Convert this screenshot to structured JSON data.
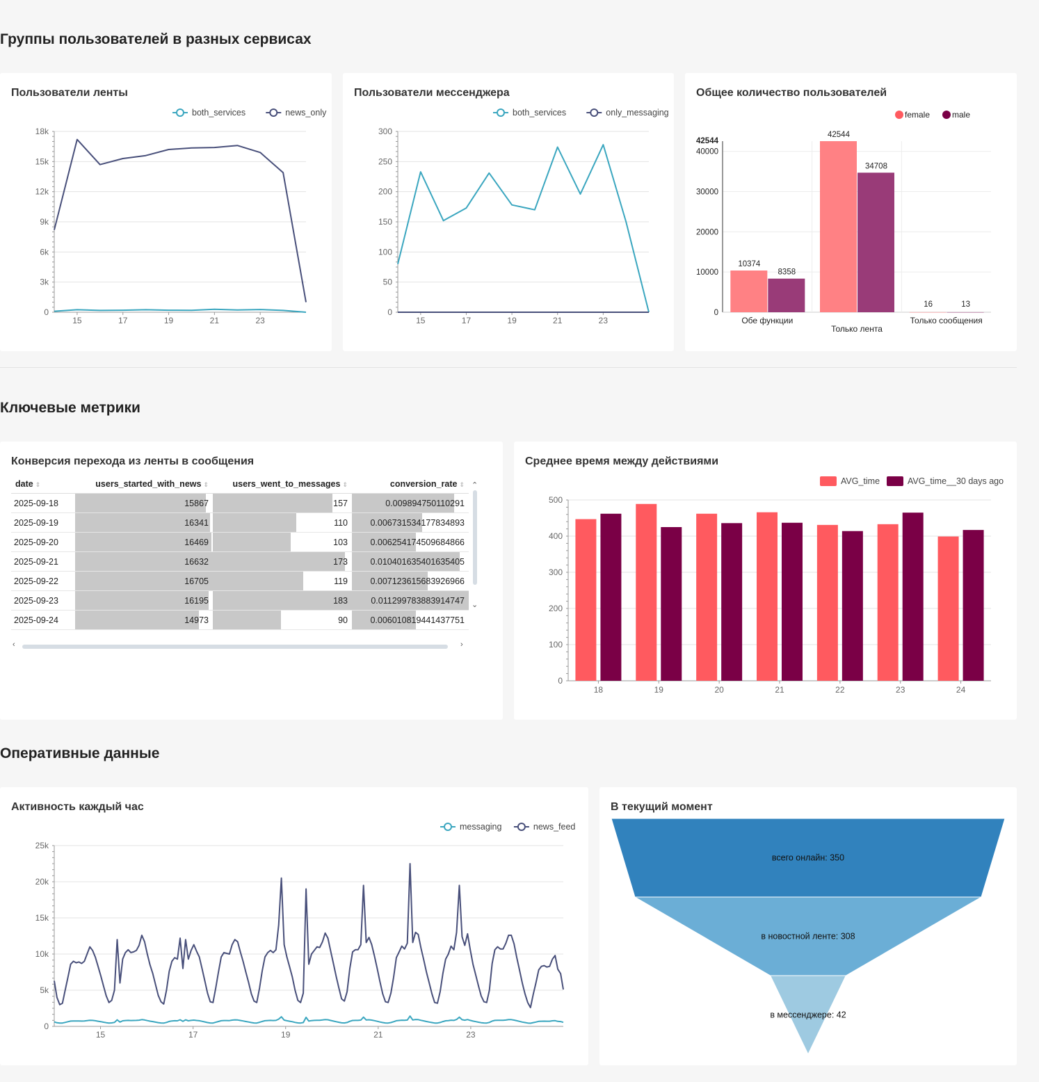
{
  "sections": {
    "groups": "Группы пользователей в разных сервисах",
    "metrics": "Ключевые метрики",
    "operational": "Оперативные данные"
  },
  "cards": {
    "feed_users": "Пользователи ленты",
    "messenger_users": "Пользователи мессенджера",
    "total_users": "Общее количество пользователей",
    "conversion": "Конверсия перехода из ленты в сообщения",
    "avg_time": "Среднее время между действиями",
    "hourly": "Активность каждый час",
    "current": "В текущий момент"
  },
  "colors": {
    "teal": "#3aa6bf",
    "navy": "#484f7a",
    "salmon": "#ff5a5f",
    "salmon_light": "#ff8184",
    "plum": "#7a0046",
    "plum_light": "#993b78",
    "funnel_1": "#3182bd",
    "funnel_2": "#6baed6",
    "funnel_3": "#9ecae1"
  },
  "table": {
    "columns": [
      "date",
      "users_started_with_news",
      "users_went_to_messages",
      "conversion_rate"
    ],
    "rows": [
      [
        "2025-09-18",
        "15867",
        "157",
        "0.009894750110291"
      ],
      [
        "2025-09-19",
        "16341",
        "110",
        "0.006731534177834893"
      ],
      [
        "2025-09-20",
        "16469",
        "103",
        "0.006254174509684866"
      ],
      [
        "2025-09-21",
        "16632",
        "173",
        "0.010401635401635405"
      ],
      [
        "2025-09-22",
        "16705",
        "119",
        "0.007123615683926966"
      ],
      [
        "2025-09-23",
        "16195",
        "183",
        "0.011299783883914747"
      ],
      [
        "2025-09-24",
        "14973",
        "90",
        "0.006010819441437751"
      ]
    ],
    "bars": [
      [
        0.95,
        0.86,
        0.35
      ],
      [
        0.98,
        0.6,
        0.24
      ],
      [
        0.99,
        0.56,
        0.22
      ],
      [
        1.0,
        0.95,
        0.37
      ],
      [
        1.0,
        0.65,
        0.26
      ],
      [
        0.97,
        1.0,
        0.4
      ],
      [
        0.9,
        0.49,
        0.22
      ]
    ]
  },
  "chart_data": [
    {
      "type": "line",
      "title": "Пользователи ленты",
      "x": [
        14,
        15,
        16,
        17,
        18,
        19,
        20,
        21,
        22,
        23,
        24,
        25
      ],
      "x_ticks": [
        "15",
        "17",
        "19",
        "21",
        "23"
      ],
      "y_ticks": [
        "0",
        "3k",
        "6k",
        "9k",
        "12k",
        "15k",
        "18k"
      ],
      "ylim": [
        0,
        18000
      ],
      "series": [
        {
          "name": "both_services",
          "color": "#3aa6bf",
          "values": [
            100,
            250,
            180,
            200,
            250,
            200,
            190,
            300,
            230,
            270,
            180,
            0
          ]
        },
        {
          "name": "news_only",
          "color": "#484f7a",
          "values": [
            8200,
            17200,
            14700,
            15300,
            15600,
            16200,
            16350,
            16400,
            16600,
            15900,
            13900,
            1000
          ]
        }
      ]
    },
    {
      "type": "line",
      "title": "Пользователи мессенджера",
      "x": [
        14,
        15,
        16,
        17,
        18,
        19,
        20,
        21,
        22,
        23,
        24,
        25
      ],
      "x_ticks": [
        "15",
        "17",
        "19",
        "21",
        "23"
      ],
      "y_ticks": [
        "0",
        "50",
        "100",
        "150",
        "200",
        "250",
        "300"
      ],
      "ylim": [
        0,
        300
      ],
      "series": [
        {
          "name": "both_services",
          "color": "#3aa6bf",
          "values": [
            80,
            233,
            152,
            173,
            231,
            178,
            170,
            274,
            196,
            278,
            150,
            0
          ]
        },
        {
          "name": "only_messaging",
          "color": "#484f7a",
          "values": [
            0,
            0,
            0,
            0,
            0,
            0,
            0,
            0,
            0,
            0,
            0,
            0
          ]
        }
      ]
    },
    {
      "type": "bar",
      "title": "Общее количество пользователей",
      "categories": [
        "Обе функции",
        "Только лента",
        "Только сообщения"
      ],
      "y_ticks": [
        "0",
        "10000",
        "20000",
        "30000",
        "40000"
      ],
      "ylim": [
        0,
        42544
      ],
      "y_max_label": "42544",
      "series": [
        {
          "name": "female",
          "color": "#ff8184",
          "legend_color": "#ff5a5f",
          "values": [
            10374,
            42544,
            16
          ]
        },
        {
          "name": "male",
          "color": "#993b78",
          "legend_color": "#7a0046",
          "values": [
            8358,
            34708,
            13
          ]
        }
      ]
    },
    {
      "type": "bar",
      "title": "Среднее время между действиями",
      "categories": [
        "18",
        "19",
        "20",
        "21",
        "22",
        "23",
        "24"
      ],
      "y_ticks": [
        "0",
        "100",
        "200",
        "300",
        "400",
        "500"
      ],
      "ylim": [
        0,
        500
      ],
      "series": [
        {
          "name": "AVG_time",
          "color": "#ff5a5f",
          "values": [
            447,
            489,
            462,
            466,
            431,
            433,
            399
          ]
        },
        {
          "name": "AVG_time__30 days ago",
          "color": "#7a0046",
          "values": [
            462,
            425,
            436,
            437,
            414,
            465,
            417
          ]
        }
      ]
    },
    {
      "type": "line",
      "title": "Активность каждый час",
      "x_start": 14,
      "x_step_days": 0.041667,
      "x_ticks": [
        "15",
        "17",
        "19",
        "21",
        "23"
      ],
      "y_ticks": [
        "0",
        "5k",
        "10k",
        "15k",
        "20k",
        "25k"
      ],
      "ylim": [
        0,
        25000
      ],
      "series": [
        {
          "name": "messaging",
          "color": "#3aa6bf",
          "values": []
        },
        {
          "name": "news_feed",
          "color": "#484f7a",
          "values": [
            6300,
            4000,
            3000,
            3200,
            5000,
            6800,
            8600,
            9000,
            8800,
            8900,
            8700,
            9000,
            10000,
            11000,
            10500,
            9600,
            8300,
            7000,
            5600,
            4200,
            3300,
            3600,
            5000,
            12000,
            6000,
            9300,
            10200,
            10600,
            10200,
            10300,
            10500,
            11200,
            12600,
            11700,
            10000,
            8500,
            7300,
            5800,
            4300,
            3400,
            3100,
            5000,
            7600,
            9000,
            9500,
            9300,
            12200,
            8000,
            12000,
            9300,
            10500,
            11300,
            10400,
            9600,
            8000,
            6300,
            4600,
            3400,
            3300,
            5300,
            7500,
            9600,
            10200,
            10100,
            10000,
            11300,
            12000,
            11700,
            10300,
            9000,
            7500,
            6100,
            4500,
            3500,
            3300,
            5300,
            7700,
            9600,
            10200,
            10500,
            10200,
            10600,
            14000,
            20500,
            11300,
            9600,
            8200,
            6800,
            5000,
            3600,
            3300,
            4600,
            19000,
            8600,
            10000,
            10500,
            11000,
            10900,
            11700,
            12900,
            12200,
            10400,
            8700,
            6900,
            5300,
            3800,
            3500,
            4800,
            8000,
            10300,
            10600,
            10600,
            11300,
            19500,
            11600,
            12300,
            11300,
            9700,
            8000,
            6200,
            4500,
            3400,
            3300,
            4600,
            6800,
            9500,
            10300,
            11100,
            10700,
            11500,
            22500,
            11600,
            13000,
            12700,
            10800,
            9200,
            7500,
            6000,
            4500,
            3300,
            3200,
            4800,
            7300,
            9300,
            10000,
            11100,
            10600,
            13000,
            19500,
            12400,
            11200,
            12800,
            10600,
            8600,
            7100,
            5600,
            4200,
            3400,
            3300,
            5000,
            8700,
            10600,
            11000,
            10700,
            10700,
            11500,
            12600,
            12600,
            11400,
            9500,
            7800,
            6000,
            4500,
            3300,
            2600,
            4400,
            6000,
            7800,
            8300,
            8400,
            8200,
            8300,
            9300,
            9800,
            7900,
            7300,
            5100
          ]
        }
      ]
    },
    {
      "type": "funnel",
      "title": "В текущий момент",
      "stages": [
        {
          "label": "всего онлайн: 350",
          "value": 350
        },
        {
          "label": "в новостной ленте: 308",
          "value": 308
        },
        {
          "label": "в мессенджере: 42",
          "value": 42
        }
      ]
    }
  ]
}
